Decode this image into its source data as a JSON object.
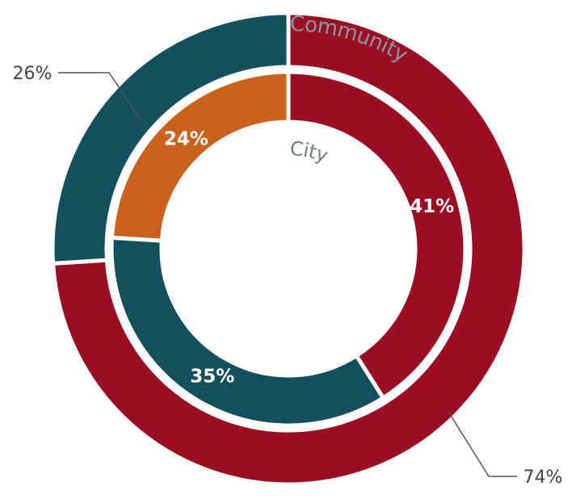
{
  "chart_data": {
    "type": "donut",
    "series": [
      {
        "name": "Community",
        "values": [
          74,
          26
        ],
        "value_labels": [
          "74%",
          "26%"
        ],
        "colors": [
          "#9b0d22",
          "#134f5c"
        ]
      },
      {
        "name": "City",
        "values": [
          41,
          35,
          24
        ],
        "value_labels": [
          "41%",
          "35%",
          "24%"
        ],
        "colors": [
          "#9b0d22",
          "#134f5c",
          "#c8621c"
        ]
      }
    ]
  }
}
